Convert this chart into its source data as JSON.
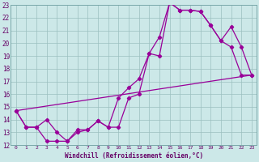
{
  "xlabel": "Windchill (Refroidissement éolien,°C)",
  "ylabel": "",
  "xlim": [
    -0.5,
    23.5
  ],
  "ylim": [
    12,
    23
  ],
  "yticks": [
    12,
    13,
    14,
    15,
    16,
    17,
    18,
    19,
    20,
    21,
    22,
    23
  ],
  "xticks": [
    0,
    1,
    2,
    3,
    4,
    5,
    6,
    7,
    8,
    9,
    10,
    11,
    12,
    13,
    14,
    15,
    16,
    17,
    18,
    19,
    20,
    21,
    22,
    23
  ],
  "background_color": "#cce8e8",
  "grid_color": "#9bbfbf",
  "line_color": "#990099",
  "line1_x": [
    0,
    1,
    2,
    3,
    4,
    5,
    6,
    7,
    8,
    9,
    10,
    11,
    12,
    13,
    14,
    15,
    16,
    17,
    18,
    19,
    20,
    21,
    22,
    23
  ],
  "line1_y": [
    14.7,
    13.4,
    13.4,
    14.0,
    13.0,
    12.3,
    13.0,
    13.2,
    13.9,
    13.4,
    15.7,
    16.5,
    17.2,
    19.2,
    19.0,
    23.2,
    22.6,
    22.6,
    22.5,
    21.4,
    20.2,
    21.3,
    19.7,
    17.5
  ],
  "line2_x": [
    0,
    1,
    2,
    3,
    4,
    5,
    6,
    7,
    8,
    9,
    10,
    11,
    12,
    13,
    14,
    15,
    16,
    17,
    18,
    19,
    20,
    21,
    22,
    23
  ],
  "line2_y": [
    14.7,
    13.4,
    13.4,
    12.3,
    12.3,
    12.3,
    13.2,
    13.2,
    13.9,
    13.4,
    13.4,
    15.7,
    16.0,
    19.2,
    20.5,
    23.2,
    22.6,
    22.6,
    22.5,
    21.4,
    20.2,
    19.7,
    17.5,
    17.5
  ],
  "line3_x": [
    0,
    23
  ],
  "line3_y": [
    14.7,
    17.5
  ]
}
